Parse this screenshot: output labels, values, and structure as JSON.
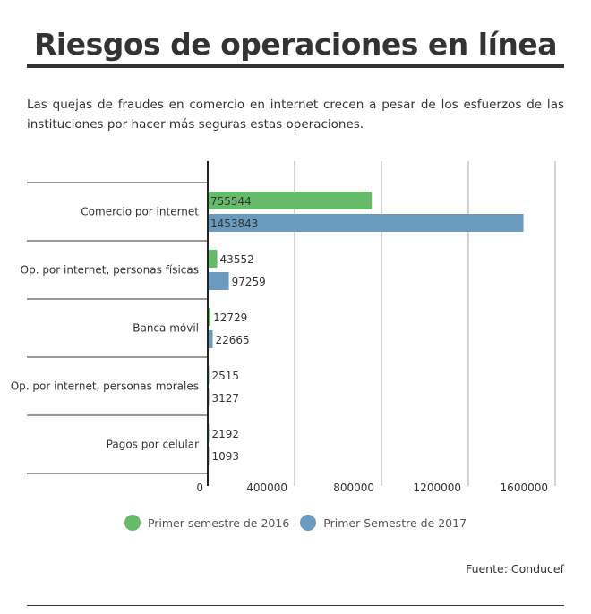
{
  "title": "Riesgos de operaciones en línea",
  "intro": "Las quejas de fraudes en comercio en internet crecen a pesar de los esfuerzos de las instituciones por hacer más seguras estas operaciones.",
  "source": "Fuente: Conducef",
  "colors": {
    "series_2016": "#66bb6a",
    "series_2017": "#6a9bbf",
    "text": "#333333"
  },
  "chart_data": {
    "type": "bar",
    "orientation": "horizontal",
    "categories": [
      "Comercio por internet",
      "Op. por internet, personas físicas",
      "Banca móvil",
      "Op. por internet, personas morales",
      "Pagos por celular"
    ],
    "series": [
      {
        "name": "Primer semestre de 2016",
        "values": [
          755544,
          43552,
          12729,
          2515,
          2192
        ]
      },
      {
        "name": "Primer Semestre de 2017",
        "values": [
          1453843,
          97259,
          22665,
          3127,
          1093
        ]
      }
    ],
    "xlim": [
      0,
      1600000
    ],
    "xticks": [
      "0",
      "400000",
      "800000",
      "1200000",
      "1600000"
    ],
    "grid": true,
    "legend_position": "bottom"
  }
}
